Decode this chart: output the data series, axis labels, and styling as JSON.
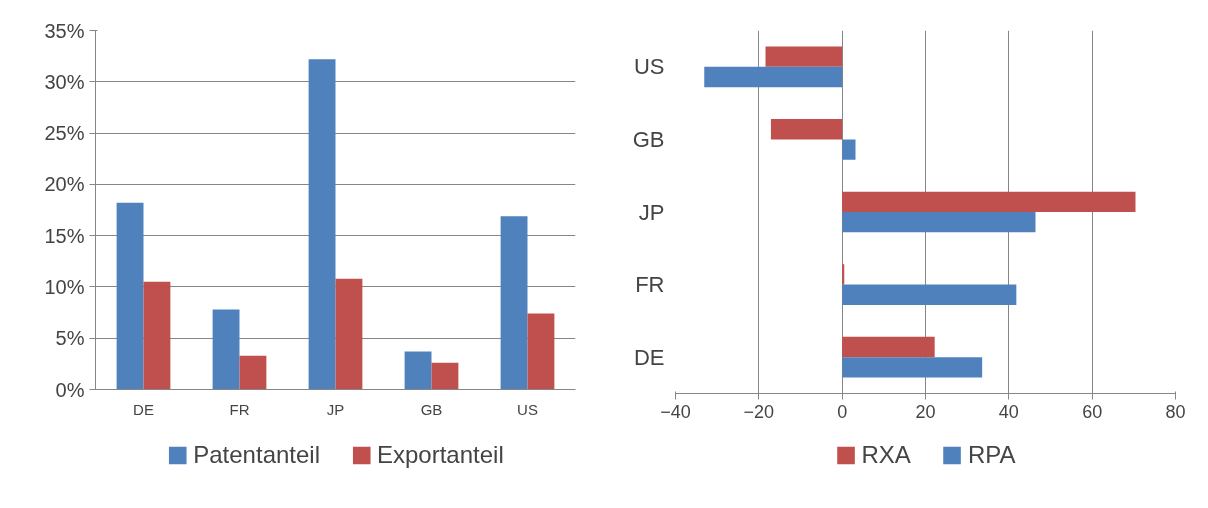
{
  "chart_data": [
    {
      "type": "bar",
      "categories": [
        "DE",
        "FR",
        "JP",
        "GB",
        "US"
      ],
      "series": [
        {
          "name": "Patentanteil",
          "color": "#4f81bd",
          "values": [
            18.2,
            7.8,
            32.2,
            3.7,
            16.9
          ]
        },
        {
          "name": "Exportanteil",
          "color": "#c0504d",
          "values": [
            10.5,
            3.3,
            10.8,
            2.6,
            7.4
          ]
        }
      ],
      "ylim": [
        0,
        35
      ],
      "yticks": [
        {
          "value": 0,
          "label": "0%"
        },
        {
          "value": 5,
          "label": "5%"
        },
        {
          "value": 10,
          "label": "10%"
        },
        {
          "value": 15,
          "label": "15%"
        },
        {
          "value": 20,
          "label": "20%"
        },
        {
          "value": 25,
          "label": "25%"
        },
        {
          "value": 30,
          "label": "30%"
        },
        {
          "value": 35,
          "label": "35%"
        }
      ],
      "grid": "y",
      "legend": "bottom"
    },
    {
      "type": "bar",
      "orientation": "horizontal",
      "categories": [
        "US",
        "GB",
        "JP",
        "FR",
        "DE"
      ],
      "series": [
        {
          "name": "RXA",
          "color": "#c0504d",
          "values": [
            -18.4,
            -17.1,
            70.4,
            0.5,
            22.2
          ]
        },
        {
          "name": "RPA",
          "color": "#4f81bd",
          "values": [
            -33.1,
            3.2,
            46.4,
            41.8,
            33.6
          ]
        }
      ],
      "xlim": [
        -40,
        80
      ],
      "xticks": [
        -40,
        -20,
        0,
        20,
        40,
        60,
        80
      ],
      "grid": "x",
      "legend": "bottom"
    }
  ]
}
